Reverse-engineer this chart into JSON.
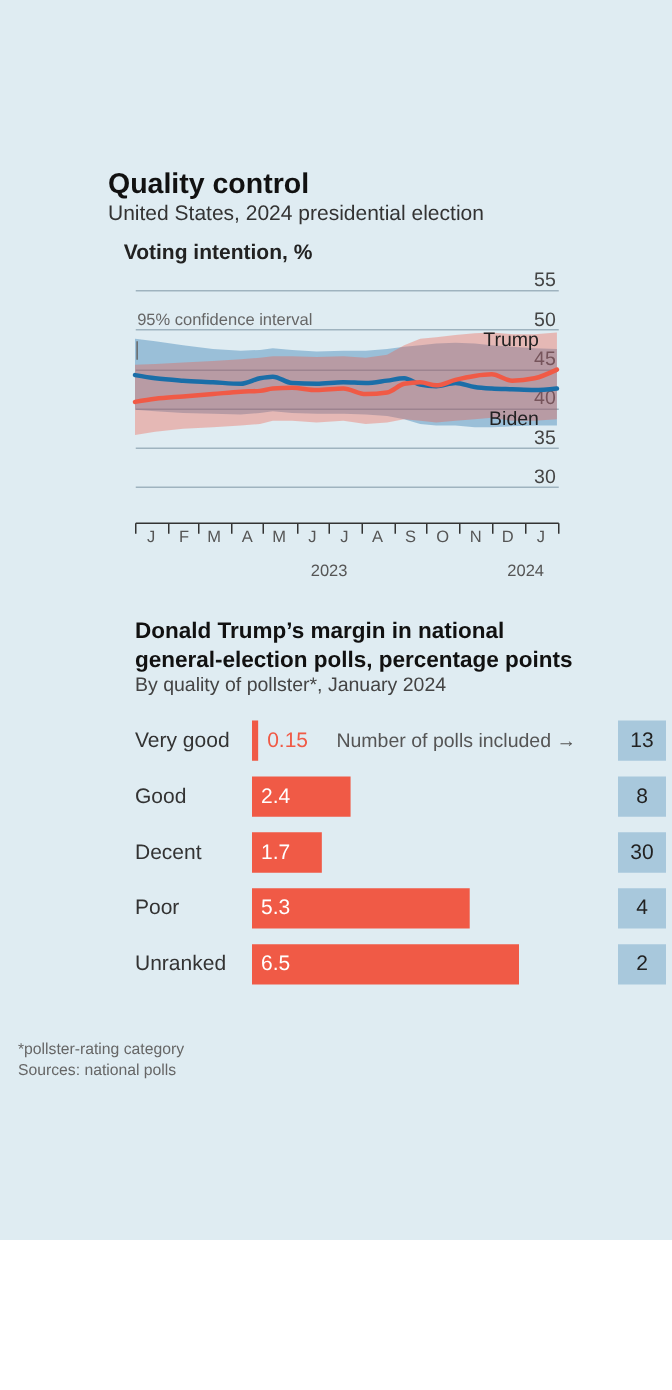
{
  "chart_data": [
    {
      "type": "line",
      "title": "Quality control",
      "subtitle": "United States, 2024 presidential election",
      "ylabel": "Voting intention, %",
      "x": [
        "2023-01-01",
        "2023-01-20",
        "2023-02-15",
        "2023-03-15",
        "2023-04-10",
        "2023-04-28",
        "2023-05-10",
        "2023-05-28",
        "2023-06-20",
        "2023-07-15",
        "2023-08-05",
        "2023-08-25",
        "2023-09-10",
        "2023-09-25",
        "2023-10-10",
        "2023-10-28",
        "2023-11-15",
        "2023-12-01",
        "2023-12-20",
        "2024-01-10",
        "2024-01-31"
      ],
      "series": [
        {
          "name": "Biden",
          "color": "#1a6ea8",
          "values": [
            44.2,
            43.8,
            43.5,
            43.3,
            43.1,
            43.8,
            44.0,
            43.2,
            43.1,
            43.3,
            43.2,
            43.5,
            43.8,
            43.0,
            42.8,
            43.2,
            42.7,
            42.5,
            42.4,
            42.3,
            42.5
          ],
          "lower": [
            39.8,
            39.6,
            39.4,
            39.3,
            39.2,
            39.4,
            39.6,
            39.4,
            39.3,
            39.3,
            39.2,
            39.0,
            38.6,
            38.0,
            37.8,
            37.8,
            37.6,
            37.6,
            37.7,
            37.8,
            37.8
          ],
          "upper": [
            48.8,
            48.5,
            48.0,
            47.5,
            47.3,
            47.4,
            47.6,
            47.4,
            47.2,
            47.3,
            47.3,
            47.5,
            47.8,
            48.0,
            48.2,
            48.3,
            48.2,
            48.0,
            47.8,
            47.6,
            47.5
          ]
        },
        {
          "name": "Trump",
          "color": "#f05a46",
          "values": [
            40.8,
            41.2,
            41.5,
            41.8,
            42.1,
            42.2,
            42.5,
            42.6,
            42.3,
            42.5,
            41.8,
            42.0,
            43.1,
            43.3,
            42.9,
            43.6,
            44.1,
            44.3,
            43.5,
            43.8,
            44.9
          ],
          "lower": [
            36.6,
            37.0,
            37.4,
            37.6,
            37.8,
            38.0,
            38.4,
            38.4,
            38.2,
            38.4,
            38.0,
            38.2,
            38.6,
            38.4,
            38.2,
            38.4,
            38.6,
            38.8,
            38.4,
            38.4,
            38.6
          ],
          "upper": [
            45.5,
            45.6,
            45.8,
            46.0,
            46.2,
            46.4,
            46.6,
            46.6,
            46.5,
            46.6,
            46.4,
            46.8,
            48.0,
            48.8,
            49.0,
            49.3,
            49.5,
            49.6,
            49.4,
            49.4,
            49.6
          ]
        }
      ],
      "xlim": [
        "2023-01-01",
        "2024-02-01"
      ],
      "xticks": [
        {
          "value": "2023-01-01",
          "label": null
        },
        {
          "value": "2023-02-01",
          "label": null
        },
        {
          "value": "2023-03-01",
          "label": null
        },
        {
          "value": "2023-04-01",
          "label": null
        },
        {
          "value": "2023-05-01",
          "label": null
        },
        {
          "value": "2023-06-01",
          "label": null
        },
        {
          "value": "2023-07-01",
          "label": "2023"
        },
        {
          "value": "2023-08-01",
          "label": null
        },
        {
          "value": "2023-09-01",
          "label": null
        },
        {
          "value": "2023-10-01",
          "label": null
        },
        {
          "value": "2023-11-01",
          "label": null
        },
        {
          "value": "2023-12-01",
          "label": null
        },
        {
          "value": "2024-01-01",
          "label": "2024"
        },
        {
          "value": "2024-02-01",
          "label": null
        }
      ],
      "ylim": [
        25.5,
        55
      ],
      "yticks": [
        30,
        35,
        40,
        45,
        50,
        55
      ],
      "grid": "y",
      "legend": false,
      "annotations": [
        {
          "text": "95% confidence interval",
          "x": "2023-01-03",
          "y": 48.5
        },
        "J",
        "F",
        "M",
        "A",
        "M",
        "J",
        "J",
        "A",
        "S",
        "O",
        "N",
        "D",
        "J"
      ]
    },
    {
      "type": "bar",
      "orientation": "horizontal",
      "title": "Donald Trump’s margin in national general-election polls, percentage points",
      "subtitle": "By quality of pollster*, January 2024",
      "categories": [
        "Very good",
        "Good",
        "Decent",
        "Poor",
        "Unranked"
      ],
      "values": [
        0.15,
        2.4,
        1.7,
        5.3,
        6.5
      ],
      "color": "#f05a46",
      "data_labels": true,
      "annotations": [
        "Number of polls included →",
        "13",
        "8",
        "30",
        "4",
        "2",
        "*pollster-rating category",
        "Sources: national polls"
      ]
    }
  ]
}
